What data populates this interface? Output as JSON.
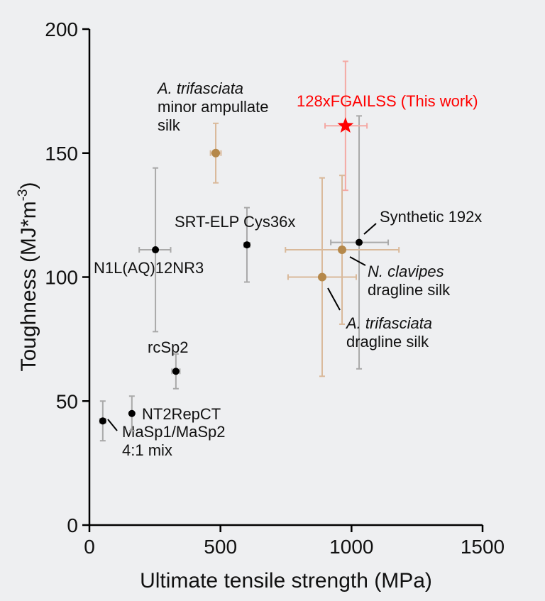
{
  "chart_data": {
    "type": "scatter",
    "xlabel": "Ultimate tensile strength (MPa)",
    "ylabel_main": "Toughness (MJ*m",
    "ylabel_sup": "-3",
    "ylabel_end": ")",
    "xlim": [
      0,
      1500
    ],
    "ylim": [
      0,
      200
    ],
    "xticks": [
      0,
      500,
      1000,
      1500
    ],
    "yticks": [
      0,
      50,
      100,
      150,
      200
    ],
    "grid": false,
    "colors": {
      "synthetic": "#000000",
      "natural": "#b5884a",
      "this_work": "#ff0000",
      "error_synthetic": "#a9a9a9",
      "error_natural": "#d9b99a",
      "error_this_work": "#f4a9a4"
    },
    "points": [
      {
        "label": [
          "MaSp1/MaSp2",
          "4:1 mix"
        ],
        "x": 51,
        "y": 42,
        "xerr": [
          40,
          62
        ],
        "yerr": [
          34,
          50
        ],
        "kind": "synthetic"
      },
      {
        "label": [
          "NT2RepCT"
        ],
        "x": 162,
        "y": 45,
        "xerr": [
          157,
          167
        ],
        "yerr": [
          38,
          52
        ],
        "kind": "synthetic"
      },
      {
        "label": [
          "rcSp2"
        ],
        "x": 330,
        "y": 62,
        "xerr": [
          315,
          345
        ],
        "yerr": [
          55,
          69
        ],
        "kind": "synthetic"
      },
      {
        "label": [
          "N1L(AQ)12NR3"
        ],
        "x": 252,
        "y": 111,
        "xerr": [
          190,
          310
        ],
        "yerr": [
          78,
          144
        ],
        "kind": "synthetic"
      },
      {
        "label": [
          "SRT-ELP Cys36x"
        ],
        "x": 601,
        "y": 113,
        "xerr": [
          590,
          612
        ],
        "yerr": [
          98,
          128
        ],
        "kind": "synthetic"
      },
      {
        "label": [
          "A. trifasciata",
          "minor ampullate",
          "silk"
        ],
        "italic_lines": [
          0
        ],
        "x": 482,
        "y": 150,
        "xerr": [
          462,
          502
        ],
        "yerr": [
          138,
          162
        ],
        "kind": "natural"
      },
      {
        "label": [
          "Synthetic 192x"
        ],
        "x": 1029,
        "y": 114,
        "xerr": [
          921,
          1140
        ],
        "yerr": [
          63,
          165
        ],
        "kind": "synthetic"
      },
      {
        "label": [
          "N. clavipes",
          "dragline silk"
        ],
        "italic_lines": [
          0
        ],
        "x": 964,
        "y": 111,
        "xerr": [
          748,
          1181
        ],
        "yerr": [
          81,
          141
        ],
        "kind": "natural"
      },
      {
        "label": [
          "A. trifasciata",
          "dragline silk"
        ],
        "italic_lines": [
          0
        ],
        "x": 888,
        "y": 100,
        "xerr": [
          758,
          1018
        ],
        "yerr": [
          60,
          140
        ],
        "kind": "natural"
      },
      {
        "label": [
          "128xFGAILSS (This work)"
        ],
        "x": 977,
        "y": 161,
        "xerr": [
          899,
          1059
        ],
        "yerr": [
          135,
          187
        ],
        "kind": "this_work",
        "marker": "star"
      }
    ]
  }
}
